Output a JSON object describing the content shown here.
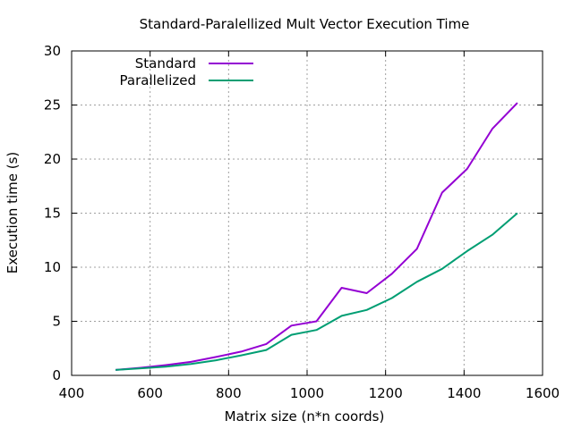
{
  "chart_data": {
    "type": "line",
    "title": "Standard-Paralellized Mult Vector Execution Time",
    "xlabel": "Matrix size (n*n coords)",
    "ylabel": "Execution time (s)",
    "xlim": [
      400,
      1600
    ],
    "ylim": [
      0,
      30
    ],
    "xticks": [
      400,
      600,
      800,
      1000,
      1200,
      1400,
      1600
    ],
    "yticks": [
      0,
      5,
      10,
      15,
      20,
      25,
      30
    ],
    "grid": true,
    "legend_position": "top-left",
    "series": [
      {
        "name": "Standard",
        "color": "#9400d3",
        "x": [
          512,
          576,
          640,
          704,
          768,
          832,
          896,
          960,
          1024,
          1088,
          1152,
          1216,
          1280,
          1344,
          1408,
          1472,
          1536
        ],
        "y": [
          0.5,
          0.7,
          0.95,
          1.25,
          1.7,
          2.2,
          2.9,
          4.6,
          5.0,
          8.1,
          7.6,
          9.4,
          11.7,
          16.9,
          19.1,
          22.8,
          25.2
        ]
      },
      {
        "name": "Parallelized",
        "color": "#009e73",
        "x": [
          512,
          576,
          640,
          704,
          768,
          832,
          896,
          960,
          1024,
          1088,
          1152,
          1216,
          1280,
          1344,
          1408,
          1472,
          1536
        ],
        "y": [
          0.5,
          0.65,
          0.8,
          1.05,
          1.4,
          1.85,
          2.35,
          3.75,
          4.2,
          5.5,
          6.05,
          7.15,
          8.65,
          9.85,
          11.5,
          13.0,
          15.0
        ]
      }
    ]
  }
}
